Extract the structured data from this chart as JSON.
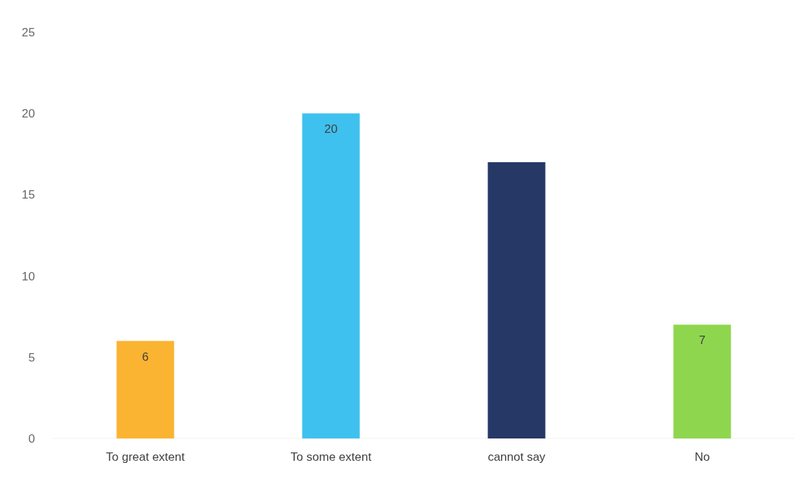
{
  "chart_data": {
    "type": "bar",
    "categories": [
      "To great extent",
      "To some extent",
      "cannot say",
      "No"
    ],
    "values": [
      6,
      20,
      17,
      7
    ],
    "colors": [
      "#fbb431",
      "#3ec1ee",
      "#263866",
      "#8fd64f"
    ],
    "value_labels": [
      "6",
      "20",
      null,
      "7"
    ],
    "ylim": [
      0,
      25
    ],
    "yticks": [
      0,
      5,
      10,
      15,
      20,
      25
    ]
  }
}
